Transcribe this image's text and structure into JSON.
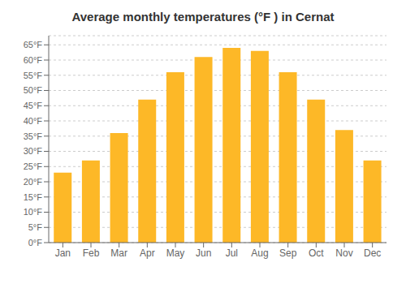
{
  "chart_data": {
    "type": "bar",
    "title": "Average monthly temperatures (°F ) in Cernat",
    "categories": [
      "Jan",
      "Feb",
      "Mar",
      "Apr",
      "May",
      "Jun",
      "Jul",
      "Aug",
      "Sep",
      "Oct",
      "Nov",
      "Dec"
    ],
    "values": [
      23,
      27,
      36,
      47,
      56,
      61,
      64,
      63,
      56,
      47,
      37,
      27
    ],
    "color": "#FDB827",
    "ylim": [
      0,
      68
    ],
    "yticks": [
      {
        "value": 0,
        "label": "0°F"
      },
      {
        "value": 5,
        "label": "5°F"
      },
      {
        "value": 10,
        "label": "10°F"
      },
      {
        "value": 15,
        "label": "15°F"
      },
      {
        "value": 20,
        "label": "20°F"
      },
      {
        "value": 25,
        "label": "25°F"
      },
      {
        "value": 30,
        "label": "30°F"
      },
      {
        "value": 35,
        "label": "35°F"
      },
      {
        "value": 40,
        "label": "40°F"
      },
      {
        "value": 45,
        "label": "45°F"
      },
      {
        "value": 50,
        "label": "50°F"
      },
      {
        "value": 55,
        "label": "55°F"
      },
      {
        "value": 60,
        "label": "60°F"
      },
      {
        "value": 65,
        "label": "65°F"
      }
    ],
    "grid": true
  }
}
